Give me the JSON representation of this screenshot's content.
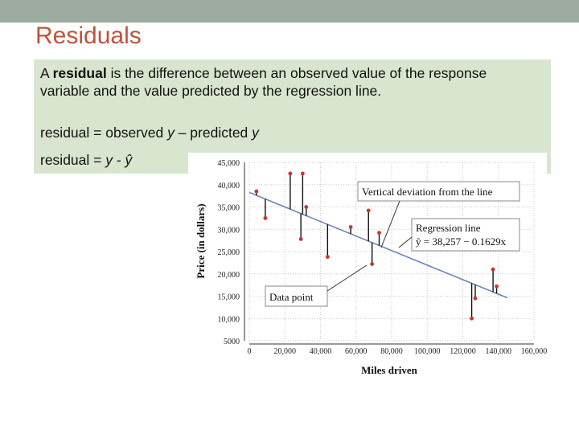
{
  "slide": {
    "title": "Residuals",
    "definition_prefix": "A ",
    "definition_bold": "residual",
    "definition_rest": " is the difference between an observed value of the response variable and the value predicted by the regression line.",
    "formula1_a": "residual = observed ",
    "formula1_y": "y",
    "formula1_b": " – predicted ",
    "formula1_y2": "y",
    "formula2_a": "residual = ",
    "formula2_y": "y",
    "formula2_b": " - ",
    "formula2_yhat": "ŷ"
  },
  "colors": {
    "topbar": "#9cab9f",
    "title": "#c0533a",
    "box": "#d8e6cf",
    "line": "#6b86b8",
    "points": "#cc3333"
  },
  "chart_data": {
    "type": "scatter",
    "xlabel": "Miles driven",
    "ylabel": "Price (in dollars)",
    "xlim": [
      0,
      160000
    ],
    "ylim": [
      5000,
      45000
    ],
    "x_ticks": [
      "0",
      "20,000",
      "40,000",
      "60,000",
      "80,000",
      "100,000",
      "120,000",
      "140,000",
      "160,000"
    ],
    "y_ticks": [
      "5000",
      "10,000",
      "15,000",
      "20,000",
      "25,000",
      "30,000",
      "35,000",
      "40,000",
      "45,000"
    ],
    "regression": {
      "intercept": 38257,
      "slope": -0.1629,
      "x_range": [
        0,
        145000
      ]
    },
    "points": [
      {
        "x": 4000,
        "y": 38500
      },
      {
        "x": 9000,
        "y": 32500
      },
      {
        "x": 23000,
        "y": 42500
      },
      {
        "x": 29000,
        "y": 27800
      },
      {
        "x": 30000,
        "y": 42500
      },
      {
        "x": 32000,
        "y": 35000
      },
      {
        "x": 44000,
        "y": 23800
      },
      {
        "x": 57000,
        "y": 30500
      },
      {
        "x": 67000,
        "y": 34200
      },
      {
        "x": 69000,
        "y": 22200
      },
      {
        "x": 73000,
        "y": 29200
      },
      {
        "x": 125000,
        "y": 10000
      },
      {
        "x": 127000,
        "y": 14500
      },
      {
        "x": 137000,
        "y": 21000
      },
      {
        "x": 139000,
        "y": 17200
      }
    ],
    "annotations": {
      "vertical_deviation": "Vertical deviation from the line",
      "regression_line": "Regression line",
      "equation": "ŷ = 38,257 − 0.1629x",
      "data_point": "Data point"
    }
  }
}
